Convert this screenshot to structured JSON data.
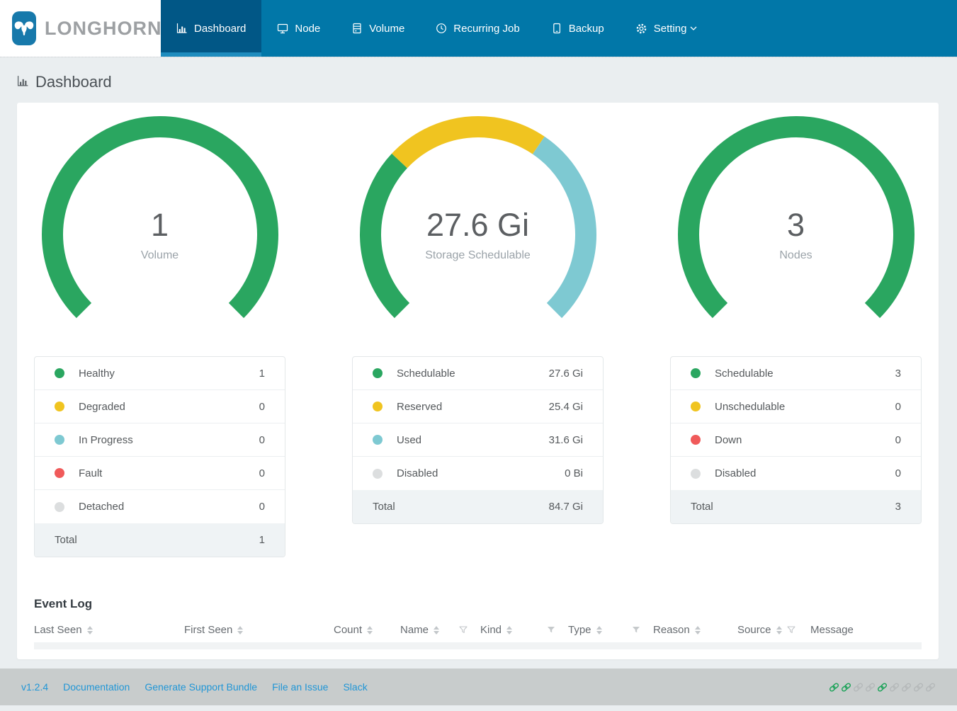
{
  "brand": {
    "name": "LONGHORN",
    "logo_icon": "longhorn-bull-icon"
  },
  "nav": {
    "items": [
      {
        "label": "Dashboard",
        "icon": "bar-chart-icon",
        "active": true
      },
      {
        "label": "Node",
        "icon": "node-monitor-icon",
        "active": false
      },
      {
        "label": "Volume",
        "icon": "volume-stack-icon",
        "active": false
      },
      {
        "label": "Recurring Job",
        "icon": "clock-icon",
        "active": false
      },
      {
        "label": "Backup",
        "icon": "backup-icon",
        "active": false
      },
      {
        "label": "Setting",
        "icon": "gear-icon",
        "active": false,
        "has_dropdown": true
      }
    ]
  },
  "page": {
    "title": "Dashboard",
    "title_icon": "bar-chart-icon"
  },
  "colors": {
    "nav_bg": "#0177a8",
    "nav_active_bg": "#015786",
    "nav_active_border": "#1e8cbe",
    "healthy_green": "#2aa660",
    "warning_yellow": "#f0c420",
    "info_teal": "#7ec9d2",
    "error_red": "#f05a5a",
    "disabled_gray": "#dcdedf",
    "link_blue": "#2196d6"
  },
  "chart_data": [
    {
      "type": "donut-gauge",
      "arc_degrees": 270,
      "center_value": "1",
      "center_label": "Volume",
      "segments": [
        {
          "label": "Healthy",
          "value": 1,
          "display": "1",
          "color": "#2aa660"
        },
        {
          "label": "Degraded",
          "value": 0,
          "display": "0",
          "color": "#f0c420"
        },
        {
          "label": "In Progress",
          "value": 0,
          "display": "0",
          "color": "#7ec9d2"
        },
        {
          "label": "Fault",
          "value": 0,
          "display": "0",
          "color": "#f05a5a"
        },
        {
          "label": "Detached",
          "value": 0,
          "display": "0",
          "color": "#dcdedf"
        }
      ],
      "total_label": "Total",
      "total_display": "1"
    },
    {
      "type": "donut-gauge",
      "arc_degrees": 270,
      "center_value": "27.6 Gi",
      "center_label": "Storage Schedulable",
      "segments": [
        {
          "label": "Schedulable",
          "value": 27.6,
          "display": "27.6 Gi",
          "color": "#2aa660"
        },
        {
          "label": "Reserved",
          "value": 25.4,
          "display": "25.4 Gi",
          "color": "#f0c420"
        },
        {
          "label": "Used",
          "value": 31.6,
          "display": "31.6 Gi",
          "color": "#7ec9d2"
        },
        {
          "label": "Disabled",
          "value": 0,
          "display": "0 Bi",
          "color": "#dcdedf"
        }
      ],
      "total_label": "Total",
      "total_display": "84.7 Gi"
    },
    {
      "type": "donut-gauge",
      "arc_degrees": 270,
      "center_value": "3",
      "center_label": "Nodes",
      "segments": [
        {
          "label": "Schedulable",
          "value": 3,
          "display": "3",
          "color": "#2aa660"
        },
        {
          "label": "Unschedulable",
          "value": 0,
          "display": "0",
          "color": "#f0c420"
        },
        {
          "label": "Down",
          "value": 0,
          "display": "0",
          "color": "#f05a5a"
        },
        {
          "label": "Disabled",
          "value": 0,
          "display": "0",
          "color": "#dcdedf"
        }
      ],
      "total_label": "Total",
      "total_display": "3"
    }
  ],
  "event_log": {
    "title": "Event Log",
    "columns": [
      {
        "label": "Last Seen",
        "sortable": true,
        "filter": "none"
      },
      {
        "label": "First Seen",
        "sortable": true,
        "filter": "none"
      },
      {
        "label": "Count",
        "sortable": true,
        "filter": "none"
      },
      {
        "label": "Name",
        "sortable": true,
        "filter": "outline"
      },
      {
        "label": "Kind",
        "sortable": true,
        "filter": "filled"
      },
      {
        "label": "Type",
        "sortable": true,
        "filter": "filled"
      },
      {
        "label": "Reason",
        "sortable": true,
        "filter": "none"
      },
      {
        "label": "Source",
        "sortable": true,
        "filter": "outline-inline"
      },
      {
        "label": "Message",
        "sortable": false,
        "filter": "none"
      }
    ],
    "rows": []
  },
  "footer": {
    "version": "v1.2.4",
    "links": [
      "Documentation",
      "Generate Support Bundle",
      "File an Issue",
      "Slack"
    ],
    "link_icons": [
      "green",
      "green",
      "gray",
      "gray",
      "green",
      "gray",
      "gray",
      "gray",
      "gray"
    ],
    "icon_colors": {
      "green": "#1ea35a",
      "gray": "#b5b9ba"
    }
  }
}
